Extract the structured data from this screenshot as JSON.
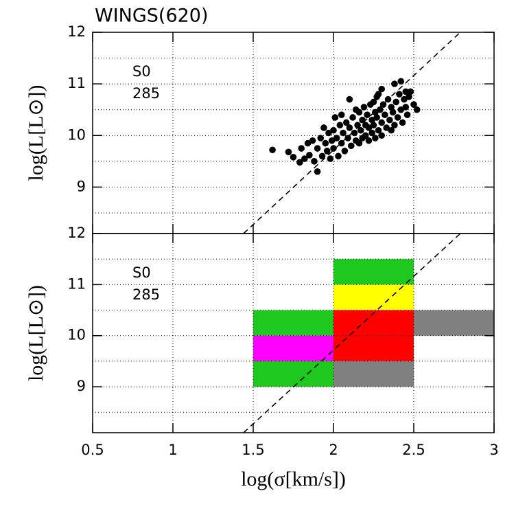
{
  "chart_data": [
    {
      "type": "scatter",
      "title": "WINGS(620)",
      "ylabel": "log(L[L⊙])",
      "annotations": [
        "S0",
        "285"
      ],
      "xlim": [
        0.5,
        3
      ],
      "ylim": [
        8.1,
        12
      ],
      "xticks": [
        0.5,
        1,
        1.5,
        2,
        2.5,
        3
      ],
      "xticklabels": false,
      "yticks": [
        9,
        10,
        11,
        12
      ],
      "ygrid": [
        8.5,
        9,
        9.5,
        10,
        10.5,
        11,
        11.5
      ],
      "grid": true,
      "color": "#000000",
      "x": [
        1.62,
        1.72,
        1.75,
        1.79,
        1.8,
        1.82,
        1.84,
        1.85,
        1.87,
        1.88,
        1.9,
        1.9,
        1.92,
        1.93,
        1.94,
        1.95,
        1.96,
        1.97,
        1.98,
        1.99,
        2.0,
        2.0,
        2.01,
        2.02,
        2.03,
        2.04,
        2.05,
        2.05,
        2.06,
        2.07,
        2.08,
        2.09,
        2.1,
        2.1,
        2.11,
        2.12,
        2.13,
        2.14,
        2.14,
        2.15,
        2.16,
        2.16,
        2.17,
        2.18,
        2.18,
        2.19,
        2.2,
        2.2,
        2.21,
        2.22,
        2.22,
        2.23,
        2.24,
        2.24,
        2.25,
        2.25,
        2.26,
        2.26,
        2.27,
        2.28,
        2.28,
        2.29,
        2.3,
        2.3,
        2.31,
        2.32,
        2.33,
        2.34,
        2.35,
        2.36,
        2.36,
        2.37,
        2.38,
        2.38,
        2.39,
        2.4,
        2.41,
        2.42,
        2.42,
        2.43,
        2.44,
        2.45,
        2.45,
        2.46,
        2.47,
        2.48,
        2.5,
        2.52,
        2.3,
        2.27
      ],
      "y": [
        9.72,
        9.68,
        9.58,
        9.48,
        9.75,
        9.55,
        9.85,
        9.62,
        9.9,
        9.5,
        9.3,
        9.75,
        9.95,
        9.6,
        10.15,
        9.85,
        9.7,
        10.05,
        9.55,
        9.9,
        10.1,
        9.75,
        10.35,
        9.95,
        9.6,
        10.2,
        10.4,
        9.85,
        10.05,
        9.7,
        10.25,
        9.95,
        10.7,
        10.15,
        9.8,
        10.35,
        10.05,
        10.5,
        9.9,
        10.2,
        10.45,
        9.85,
        10.1,
        10.3,
        9.95,
        10.55,
        10.2,
        10.0,
        10.4,
        10.15,
        9.9,
        10.6,
        10.3,
        10.05,
        10.65,
        10.2,
        10.45,
        9.95,
        10.35,
        10.8,
        10.1,
        10.5,
        10.25,
        10.0,
        10.6,
        10.4,
        10.15,
        10.7,
        10.3,
        10.55,
        10.1,
        10.45,
        11.0,
        10.2,
        10.65,
        10.35,
        10.8,
        11.05,
        10.5,
        10.25,
        10.7,
        10.85,
        10.55,
        10.4,
        10.75,
        10.85,
        10.6,
        10.5,
        10.9,
        10.75
      ],
      "line": {
        "x": [
          1.44,
          2.79
        ],
        "y": [
          8.1,
          12
        ],
        "style": "dashed"
      }
    },
    {
      "type": "tiles",
      "ylabel": "log(L[L⊙])",
      "xlabel": "log(σ[km/s])",
      "annotations": [
        "S0",
        "285"
      ],
      "xlim": [
        0.5,
        3
      ],
      "ylim": [
        8.1,
        12
      ],
      "xticks": [
        0.5,
        1,
        1.5,
        2,
        2.5,
        3
      ],
      "xticklabels": true,
      "yticks": [
        9,
        10,
        11,
        12
      ],
      "ygrid": [
        8.5,
        9,
        9.5,
        10,
        10.5,
        11,
        11.5
      ],
      "grid": true,
      "cells": [
        {
          "x": [
            1.5,
            2
          ],
          "y": [
            10,
            10.5
          ],
          "color": "#1ec81e"
        },
        {
          "x": [
            1.5,
            2
          ],
          "y": [
            9.5,
            10
          ],
          "color": "#ff00ff"
        },
        {
          "x": [
            1.5,
            2
          ],
          "y": [
            9,
            9.5
          ],
          "color": "#1ec81e"
        },
        {
          "x": [
            2,
            2.5
          ],
          "y": [
            11,
            11.5
          ],
          "color": "#1ec81e"
        },
        {
          "x": [
            2,
            2.5
          ],
          "y": [
            10.5,
            11
          ],
          "color": "#ffff00"
        },
        {
          "x": [
            2,
            2.5
          ],
          "y": [
            9.5,
            10.5
          ],
          "color": "#ff0000"
        },
        {
          "x": [
            2,
            2.5
          ],
          "y": [
            9,
            9.5
          ],
          "color": "#808080"
        },
        {
          "x": [
            2.5,
            3
          ],
          "y": [
            10,
            10.5
          ],
          "color": "#808080"
        }
      ],
      "line": {
        "x": [
          1.44,
          2.79
        ],
        "y": [
          8.1,
          12
        ],
        "style": "dashed"
      }
    }
  ]
}
